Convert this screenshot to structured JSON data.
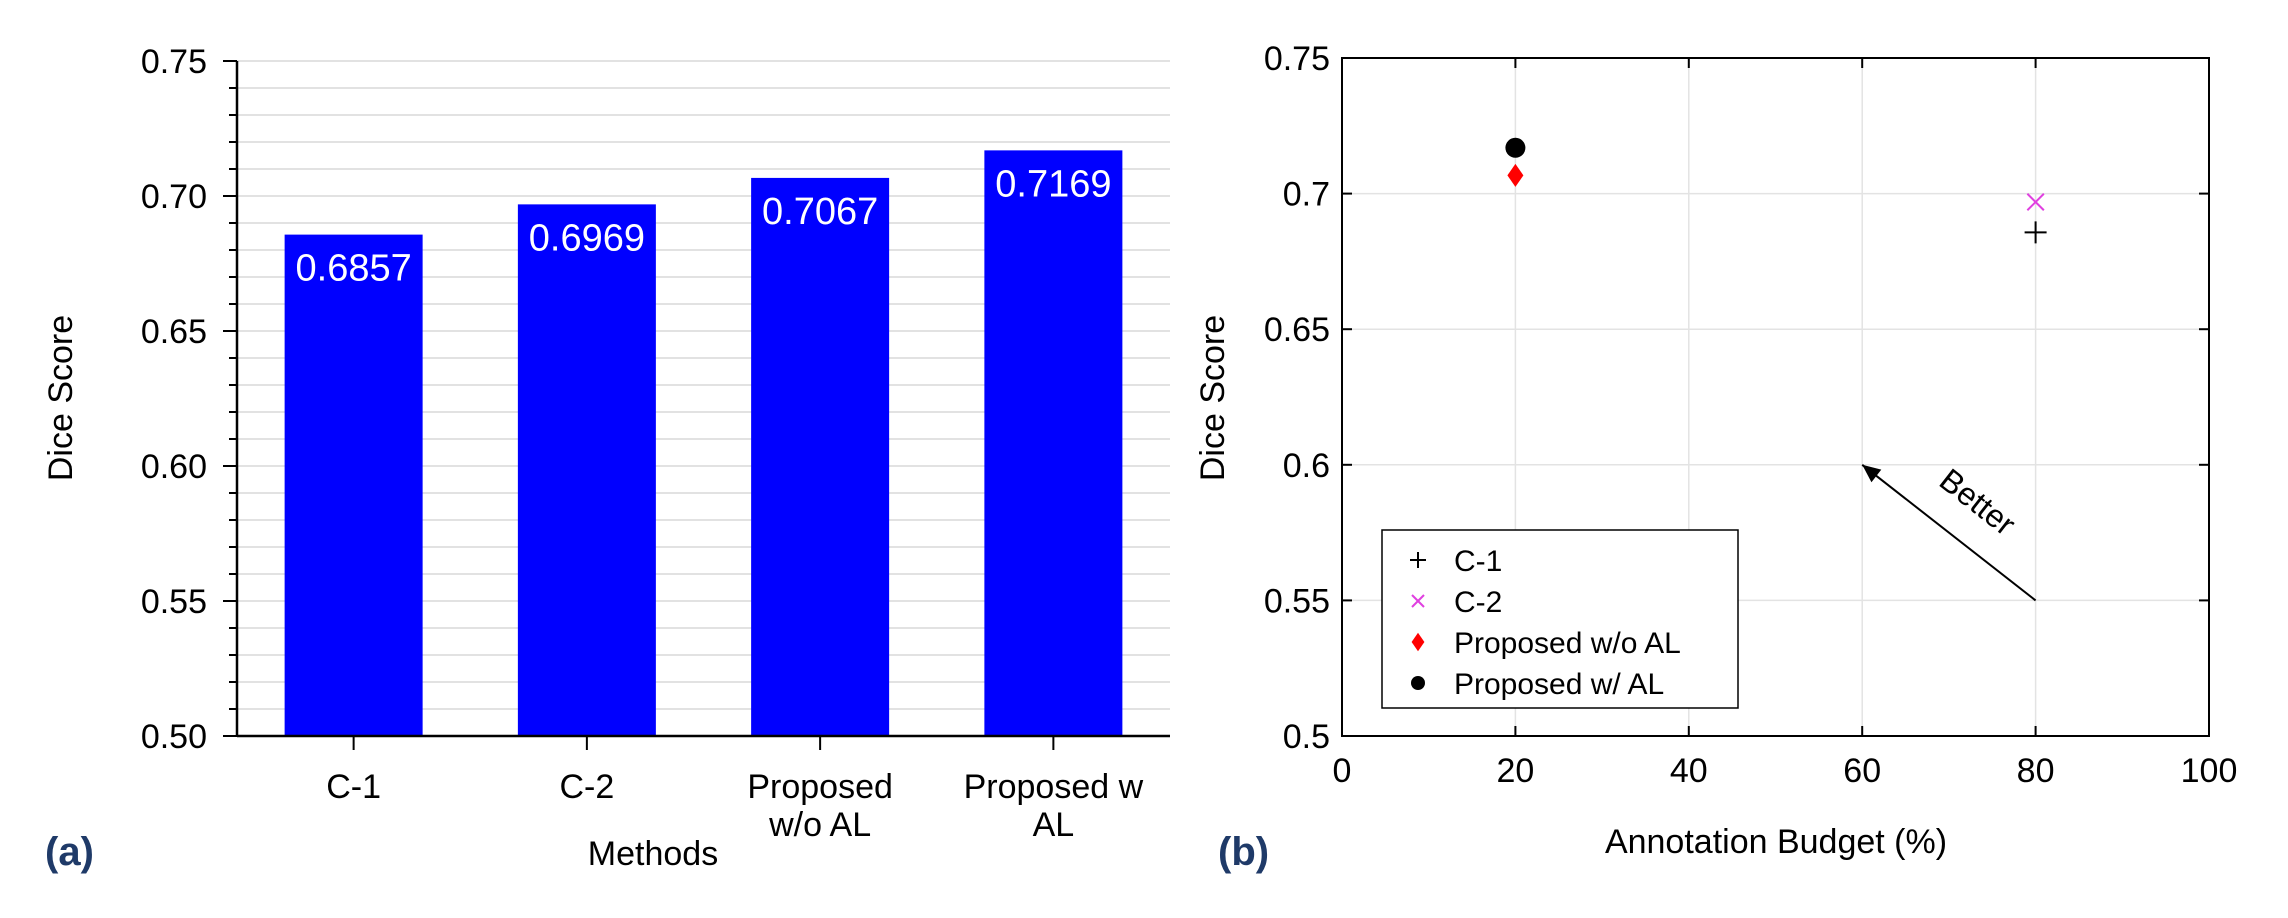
{
  "chart_data": [
    {
      "type": "bar",
      "panel_label": "(a)",
      "categories": [
        [
          "C-1"
        ],
        [
          "C-2"
        ],
        [
          "Proposed",
          "w/o AL"
        ],
        [
          "Proposed w",
          "AL"
        ]
      ],
      "values": [
        0.6857,
        0.6969,
        0.7067,
        0.7169
      ],
      "data_labels": [
        "0.6857",
        "0.6969",
        "0.7067",
        "0.7169"
      ],
      "xlabel": "Methods",
      "ylabel": "Dice Score",
      "ylim": [
        0.5,
        0.75
      ],
      "yticks": [
        0.5,
        0.55,
        0.6,
        0.65,
        0.7,
        0.75
      ],
      "ytick_labels": [
        "0.50",
        "0.55",
        "0.60",
        "0.65",
        "0.70",
        "0.75"
      ],
      "minor_step": 0.01,
      "bar_color": "#0000ff",
      "grid": true
    },
    {
      "type": "scatter",
      "panel_label": "(b)",
      "xlabel": "Annotation Budget (%)",
      "ylabel": "Dice Score",
      "xlim": [
        0,
        100
      ],
      "ylim": [
        0.5,
        0.75
      ],
      "xticks": [
        0,
        20,
        40,
        60,
        80,
        100
      ],
      "xtick_labels": [
        "0",
        "20",
        "40",
        "60",
        "80",
        "100"
      ],
      "yticks": [
        0.5,
        0.55,
        0.6,
        0.65,
        0.7,
        0.75
      ],
      "ytick_labels": [
        "0.5",
        "0.55",
        "0.6",
        "0.65",
        "0.7",
        "0.75"
      ],
      "grid": true,
      "legend_position": "bottom-left",
      "series": [
        {
          "name": "C-1",
          "marker": "plus",
          "color": "#000000",
          "x": [
            80
          ],
          "y": [
            0.6857
          ]
        },
        {
          "name": "C-2",
          "marker": "x",
          "color": "#e040e0",
          "x": [
            80
          ],
          "y": [
            0.6969
          ]
        },
        {
          "name": "Proposed w/o AL",
          "marker": "diamond",
          "color": "#ff0000",
          "x": [
            20
          ],
          "y": [
            0.7067
          ]
        },
        {
          "name": "Proposed w/ AL",
          "marker": "circle",
          "color": "#000000",
          "x": [
            20
          ],
          "y": [
            0.7169
          ]
        }
      ],
      "annotation": {
        "text": "Better",
        "arrow_from": [
          80,
          0.55
        ],
        "arrow_to": [
          60,
          0.6
        ]
      }
    }
  ]
}
